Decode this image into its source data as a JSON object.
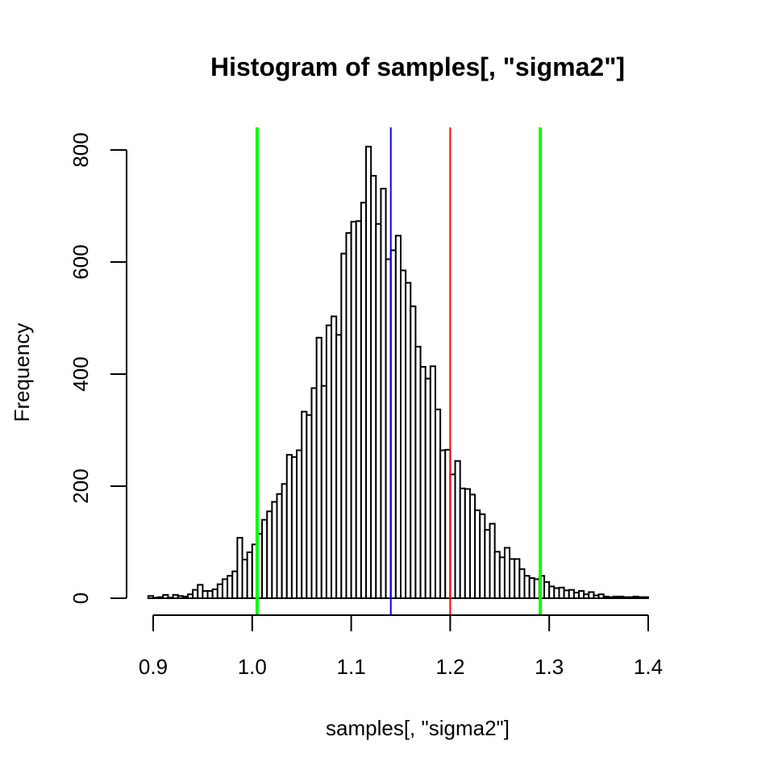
{
  "chart_data": {
    "type": "bar",
    "title": "Histogram of samples[, \"sigma2\"]",
    "xlabel": "samples[, \"sigma2\"]",
    "ylabel": "Frequency",
    "x_ticks": [
      0.9,
      1.0,
      1.1,
      1.2,
      1.3,
      1.4
    ],
    "x_tick_labels": [
      "0.9",
      "1.0",
      "1.1",
      "1.2",
      "1.3",
      "1.4"
    ],
    "y_ticks": [
      0,
      200,
      400,
      600,
      800
    ],
    "y_tick_labels": [
      "0",
      "200",
      "400",
      "600",
      "800"
    ],
    "xlim": [
      0.895,
      1.44
    ],
    "ylim": [
      0,
      800
    ],
    "grid": false,
    "bin_width": 0.005,
    "bin_start": 0.895,
    "values": [
      4,
      1,
      2,
      6,
      1,
      6,
      4,
      3,
      7,
      15,
      24,
      13,
      13,
      16,
      25,
      34,
      40,
      48,
      108,
      69,
      82,
      96,
      115,
      140,
      155,
      172,
      186,
      204,
      256,
      252,
      264,
      333,
      327,
      375,
      465,
      379,
      487,
      503,
      470,
      615,
      652,
      672,
      673,
      706,
      806,
      754,
      668,
      731,
      605,
      621,
      647,
      585,
      563,
      521,
      449,
      413,
      392,
      414,
      337,
      264,
      265,
      221,
      245,
      196,
      195,
      185,
      157,
      150,
      122,
      133,
      83,
      73,
      90,
      70,
      70,
      52,
      40,
      36,
      34,
      40,
      29,
      21,
      18,
      19,
      14,
      15,
      10,
      13,
      7,
      11,
      5,
      7,
      3,
      2,
      3,
      3,
      2,
      2,
      3,
      2,
      2
    ],
    "reference_lines": [
      {
        "x": 1.005,
        "color": "#00ff00",
        "width": 4
      },
      {
        "x": 1.291,
        "color": "#00ff00",
        "width": 4
      },
      {
        "x": 1.14,
        "color": "#0000ff",
        "width": 2
      },
      {
        "x": 1.2,
        "color": "#ff0000",
        "width": 2
      }
    ]
  }
}
